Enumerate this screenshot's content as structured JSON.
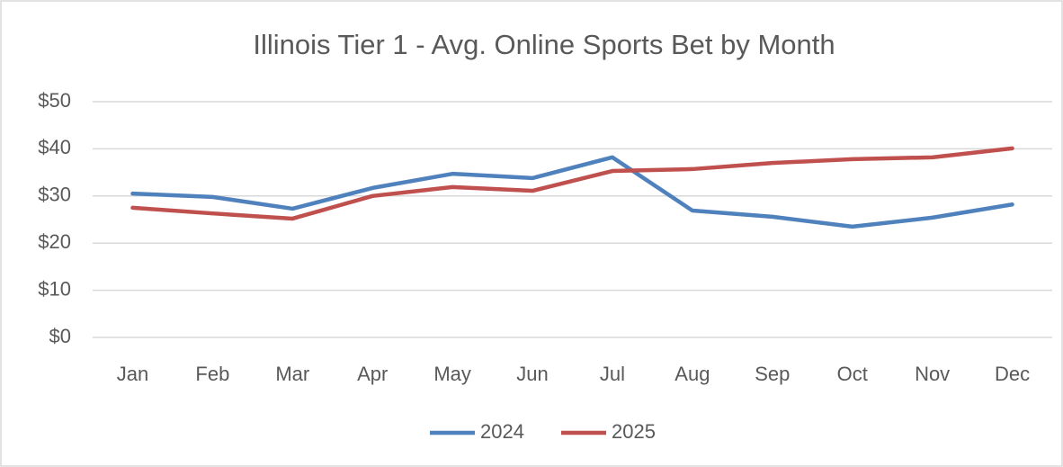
{
  "chart_data": {
    "type": "line",
    "title": "Illinois Tier 1 - Avg. Online Sports Bet by Month",
    "categories": [
      "Jan",
      "Feb",
      "Mar",
      "Apr",
      "May",
      "Jun",
      "Jul",
      "Aug",
      "Sep",
      "Oct",
      "Nov",
      "Dec"
    ],
    "series": [
      {
        "name": "2024",
        "color": "#4f81bd",
        "values": [
          30.5,
          29.8,
          27.3,
          31.7,
          34.7,
          33.8,
          38.2,
          26.9,
          25.6,
          23.5,
          25.4,
          28.2
        ]
      },
      {
        "name": "2025",
        "color": "#c0504d",
        "values": [
          27.5,
          26.3,
          25.2,
          30.0,
          31.9,
          31.1,
          35.3,
          35.7,
          37.0,
          37.8,
          38.2,
          40.1
        ]
      }
    ],
    "ylim": [
      0,
      50
    ],
    "yticks": [
      {
        "value": 0,
        "label": "$0"
      },
      {
        "value": 10,
        "label": "$10"
      },
      {
        "value": 20,
        "label": "$20"
      },
      {
        "value": 30,
        "label": "$30"
      },
      {
        "value": 40,
        "label": "$40"
      },
      {
        "value": 50,
        "label": "$50"
      }
    ],
    "grid": true,
    "legend": "bottom"
  }
}
